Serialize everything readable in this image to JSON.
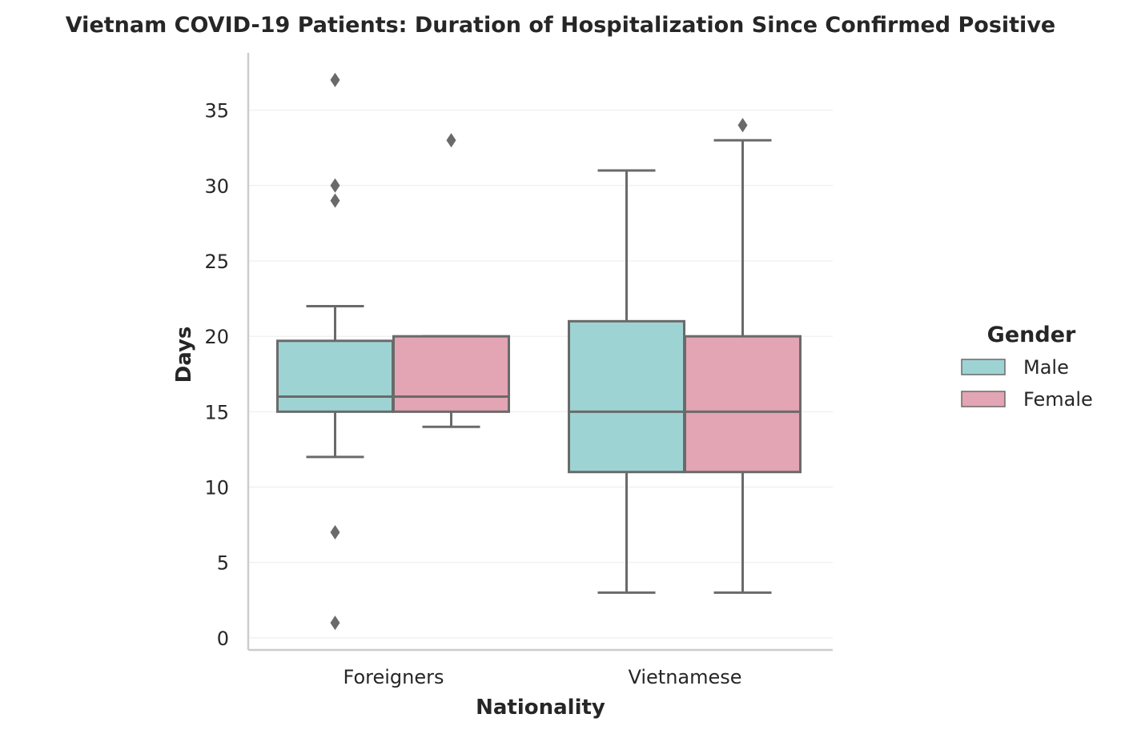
{
  "chart_data": {
    "type": "box",
    "title": "Vietnam COVID-19 Patients: Duration of Hospitalization Since Confirmed Positive",
    "xlabel": "Nationality",
    "ylabel": "Days",
    "categories": [
      "Foreigners",
      "Vietnamese"
    ],
    "yticks": [
      0,
      5,
      10,
      15,
      20,
      25,
      30,
      35
    ],
    "ylim": [
      -0.8,
      38.8
    ],
    "grid": true,
    "legend": {
      "title": "Gender",
      "placement": "right",
      "entries": [
        "Male",
        "Female"
      ]
    },
    "series": [
      {
        "name": "Male",
        "color": "#9ed3d3",
        "boxes": [
          {
            "category": "Foreigners",
            "whisker_low": 12,
            "q1": 15,
            "median": 16,
            "q3": 19.7,
            "whisker_high": 22,
            "outliers": [
              37,
              30,
              29,
              7,
              1
            ]
          },
          {
            "category": "Vietnamese",
            "whisker_low": 3,
            "q1": 11,
            "median": 15,
            "q3": 21,
            "whisker_high": 31,
            "outliers": []
          }
        ]
      },
      {
        "name": "Female",
        "color": "#e3a4b3",
        "boxes": [
          {
            "category": "Foreigners",
            "whisker_low": 14,
            "q1": 15,
            "median": 16,
            "q3": 20,
            "whisker_high": 20,
            "outliers": [
              33
            ]
          },
          {
            "category": "Vietnamese",
            "whisker_low": 3,
            "q1": 11,
            "median": 15,
            "q3": 20,
            "whisker_high": 33,
            "outliers": [
              34
            ]
          }
        ]
      }
    ],
    "line_color": "#6a6a6a",
    "spine_color": "#cccccc",
    "grid_color": "#ebebeb"
  }
}
